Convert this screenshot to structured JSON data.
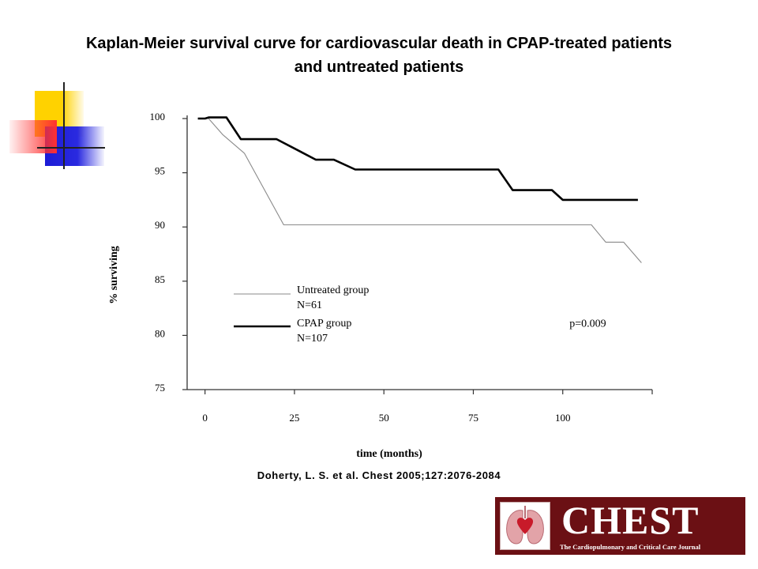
{
  "title": {
    "line1": "Kaplan-Meier survival curve for cardiovascular death in CPAP-treated patients",
    "line2": "and untreated patients"
  },
  "citation": "Doherty, L. S. et al. Chest 2005;127:2076-2084",
  "logo": {
    "word": "CHEST",
    "tagline": "The Cardiopulmonary and Critical Care Journal",
    "color": "#6b1014"
  },
  "chart_data": {
    "type": "line",
    "title": "",
    "xlabel": "time (months)",
    "ylabel": "% surviving",
    "xlim": [
      -5,
      125
    ],
    "ylim": [
      75,
      100
    ],
    "x_ticks": [
      0,
      25,
      50,
      75,
      100
    ],
    "y_ticks": [
      75,
      80,
      85,
      90,
      95,
      100
    ],
    "legend_position": "inside-left",
    "grid": false,
    "annotations": [
      {
        "text": "p=0.009",
        "x": 107,
        "y": 80.8
      }
    ],
    "series": [
      {
        "name": "Untreated group",
        "sub": "N=61",
        "style": "thin",
        "color": "#8a8a8a",
        "points": [
          [
            -2,
            100
          ],
          [
            1,
            100
          ],
          [
            5,
            98.5
          ],
          [
            11,
            96.8
          ],
          [
            22,
            90.2
          ],
          [
            108,
            90.2
          ],
          [
            112,
            88.6
          ],
          [
            117,
            88.6
          ],
          [
            122,
            86.7
          ]
        ]
      },
      {
        "name": "CPAP group",
        "sub": "N=107",
        "style": "thick",
        "color": "#000000",
        "points": [
          [
            -2,
            100
          ],
          [
            0,
            100
          ],
          [
            1,
            100.1
          ],
          [
            6,
            100.1
          ],
          [
            10,
            98.1
          ],
          [
            20,
            98.1
          ],
          [
            31,
            96.2
          ],
          [
            36,
            96.2
          ],
          [
            42,
            95.3
          ],
          [
            82,
            95.3
          ],
          [
            86,
            93.4
          ],
          [
            97,
            93.4
          ],
          [
            100,
            92.5
          ],
          [
            121,
            92.5
          ]
        ]
      }
    ]
  }
}
